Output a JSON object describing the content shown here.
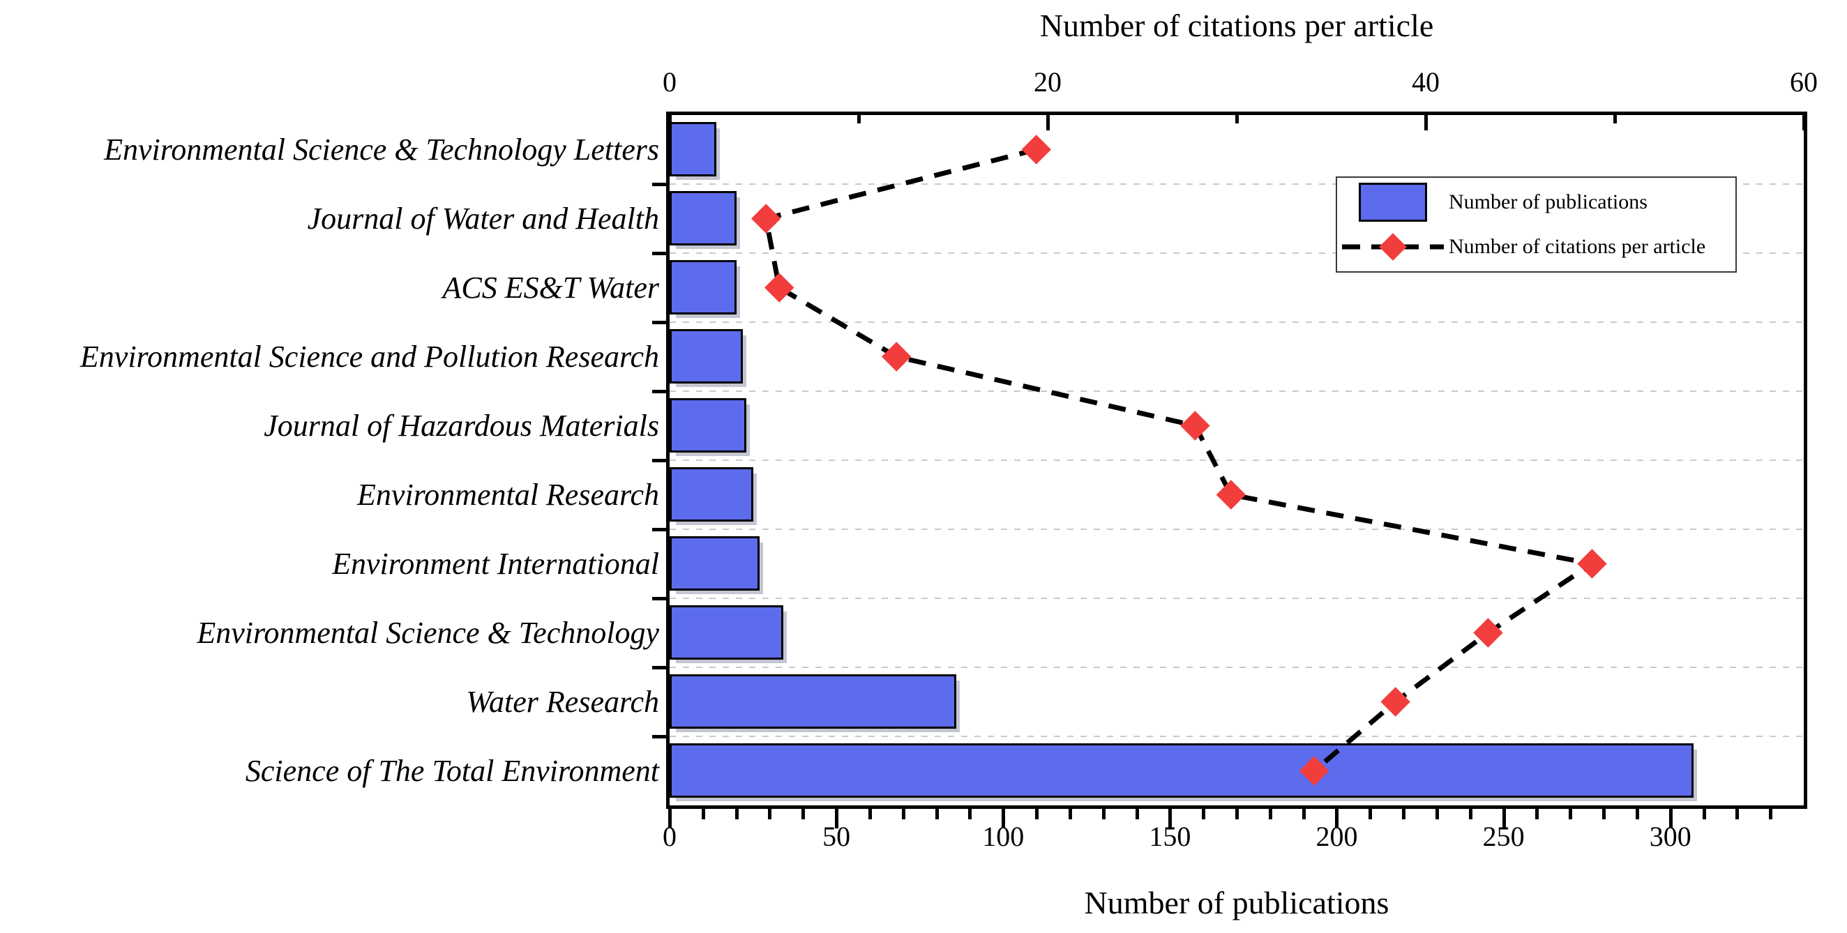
{
  "chart_data": {
    "type": "bar",
    "orientation": "horizontal",
    "title": "",
    "categories": [
      "Environmental Science & Technology Letters",
      "Journal of Water and Health",
      "ACS ES&T Water",
      "Environmental Science and Pollution Research",
      "Journal of Hazardous Materials",
      "Environmental Research",
      "Environment International",
      "Environmental Science & Technology",
      "Water Research",
      "Science of The Total Environment"
    ],
    "series": [
      {
        "name": "Number of publications",
        "type": "bar",
        "axis": "bottom",
        "values": [
          14,
          20,
          20,
          22,
          23,
          25,
          27,
          34,
          86,
          307
        ]
      },
      {
        "name": "Number of citations per article",
        "type": "line-diamond-dashed",
        "axis": "top",
        "values": [
          19.4,
          5.1,
          5.8,
          12.0,
          27.8,
          29.7,
          48.8,
          43.3,
          38.4,
          34.1
        ]
      }
    ],
    "top_axis": {
      "title": "Number of citations per article",
      "min": 0,
      "max": 60,
      "major_ticks": [
        0,
        20,
        40,
        60
      ],
      "minor_ticks": [
        10,
        30,
        50
      ]
    },
    "bottom_axis": {
      "title": "Number of publications",
      "min": 0,
      "max": 340,
      "major_ticks": [
        0,
        50,
        100,
        150,
        200,
        250,
        300
      ],
      "minor_tick_step": 10
    },
    "legend": {
      "items": [
        {
          "label": "Number of publications",
          "marker": "bar-swatch"
        },
        {
          "label": "Number of citations per article",
          "marker": "diamond-dash"
        }
      ],
      "position": "upper-right"
    },
    "grid": "horizontal-dashed",
    "colors": {
      "bar_fill": "#5d6cec",
      "bar_border": "#000000",
      "diamond": "#f23d3d",
      "dash_line": "#000000",
      "grid": "#c9c9c9",
      "axis": "#000000",
      "background": "#ffffff"
    }
  }
}
